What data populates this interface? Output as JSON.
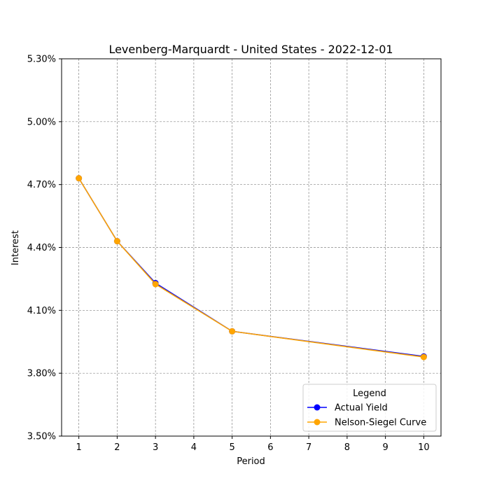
{
  "chart_data": {
    "type": "line",
    "title": "Levenberg-Marquardt - United States - 2022-12-01",
    "xlabel": "Period",
    "ylabel": "Interest",
    "xlim": [
      0.55,
      10.45
    ],
    "ylim": [
      3.5,
      5.3
    ],
    "x_ticks": [
      1,
      2,
      3,
      4,
      5,
      6,
      7,
      8,
      9,
      10
    ],
    "y_ticks": [
      3.5,
      3.8,
      4.1,
      4.4,
      4.7,
      5.0,
      5.3
    ],
    "y_tick_labels": [
      "3.50%",
      "3.80%",
      "4.10%",
      "4.40%",
      "4.70%",
      "5.00%",
      "5.30%"
    ],
    "grid": true,
    "legend": {
      "title": "Legend",
      "placement": "lower-right"
    },
    "series": [
      {
        "name": "Actual Yield",
        "color": "#0000ff",
        "marker": "circle",
        "x": [
          1,
          2,
          3,
          5,
          10
        ],
        "y": [
          4.73,
          4.43,
          4.23,
          4.0,
          3.88
        ]
      },
      {
        "name": "Nelson-Siegel Curve",
        "color": "#ffa500",
        "marker": "circle",
        "x": [
          1,
          2,
          3,
          5,
          10
        ],
        "y": [
          4.73,
          4.43,
          4.225,
          4.0,
          3.877
        ]
      }
    ]
  }
}
